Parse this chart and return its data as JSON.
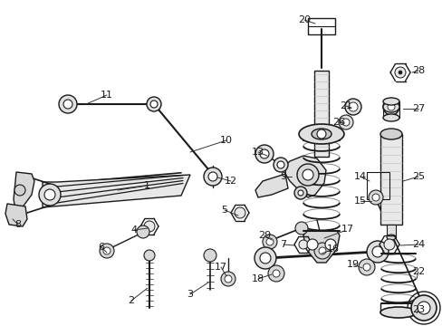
{
  "background_color": "#ffffff",
  "fig_width": 4.89,
  "fig_height": 3.6,
  "dpi": 100,
  "dark": "#1a1a1a",
  "gray": "#888888",
  "light_gray": "#cccccc",
  "parts_color": "#e8e8e8"
}
